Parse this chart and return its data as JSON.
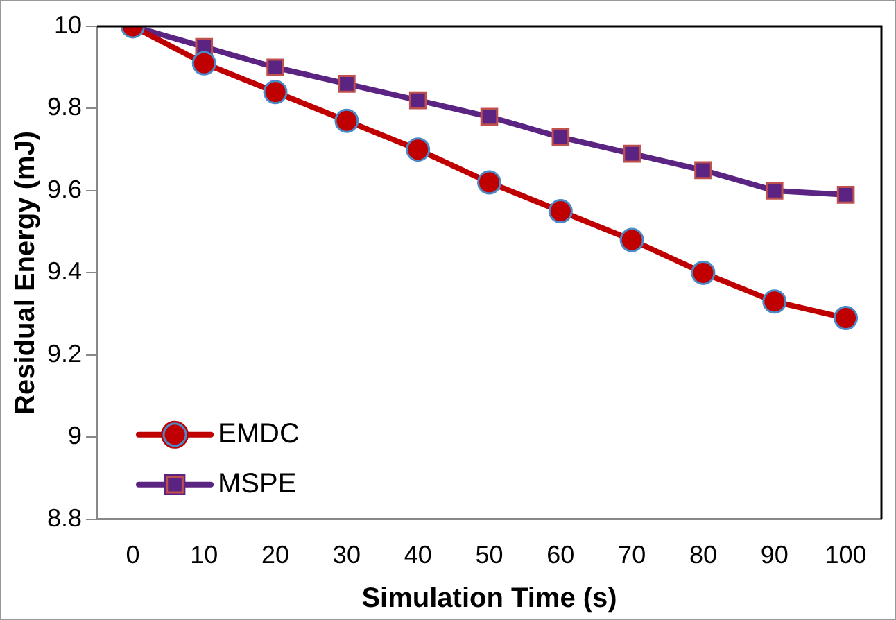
{
  "chart_data": {
    "type": "line",
    "xlabel": "Simulation Time (s)",
    "ylabel": "Residual Energy (mJ)",
    "categories": [
      "0",
      "10",
      "20",
      "30",
      "40",
      "50",
      "60",
      "70",
      "80",
      "90",
      "100"
    ],
    "series": [
      {
        "name": "EMDC",
        "color": "#c00000",
        "marker": "circle",
        "values": [
          10,
          9.91,
          9.84,
          9.77,
          9.7,
          9.62,
          9.55,
          9.48,
          9.4,
          9.33,
          9.29
        ]
      },
      {
        "name": "MSPE",
        "color": "#5b2483",
        "marker": "square",
        "values": [
          10,
          9.95,
          9.9,
          9.86,
          9.82,
          9.78,
          9.73,
          9.69,
          9.65,
          9.6,
          9.59
        ]
      }
    ],
    "ylim": [
      8.8,
      10
    ],
    "yticks": [
      8.8,
      9,
      9.2,
      9.4,
      9.6,
      9.8,
      10
    ],
    "grid": false,
    "legend": "bottom left",
    "line_style": "solid"
  }
}
